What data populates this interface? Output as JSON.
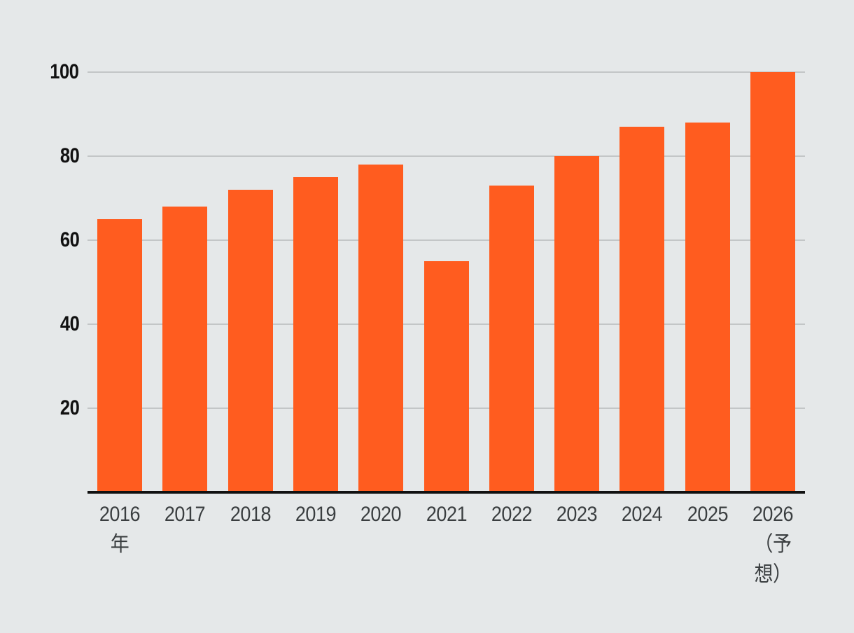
{
  "chart_data": {
    "type": "bar",
    "title": "",
    "categories": [
      "2016年",
      "2017",
      "2018",
      "2019",
      "2020",
      "2021",
      "2022",
      "2023",
      "2024",
      "2025",
      "2026（予想）"
    ],
    "values": [
      65,
      68,
      72,
      75,
      78,
      55,
      73,
      80,
      87,
      88,
      100
    ],
    "x_tick_lines": [
      [
        "2016",
        "年"
      ],
      [
        "2017"
      ],
      [
        "2018"
      ],
      [
        "2019"
      ],
      [
        "2020"
      ],
      [
        "2021"
      ],
      [
        "2022"
      ],
      [
        "2023"
      ],
      [
        "2024"
      ],
      [
        "2025"
      ],
      [
        "2026",
        "（予",
        "想）"
      ]
    ],
    "y_ticks": [
      20,
      40,
      60,
      80,
      100
    ],
    "ylim": [
      0,
      100
    ],
    "xlabel": "",
    "ylabel": "",
    "grid": "horizontal",
    "legend": "none",
    "bar_color": "#FF5C1F",
    "background_color": "#E5E8E9",
    "gridline_color": "#C3C6C7",
    "axis_line_color": "#111111",
    "y_tick_color": "#111111",
    "x_tick_color": "#3A3E40"
  }
}
